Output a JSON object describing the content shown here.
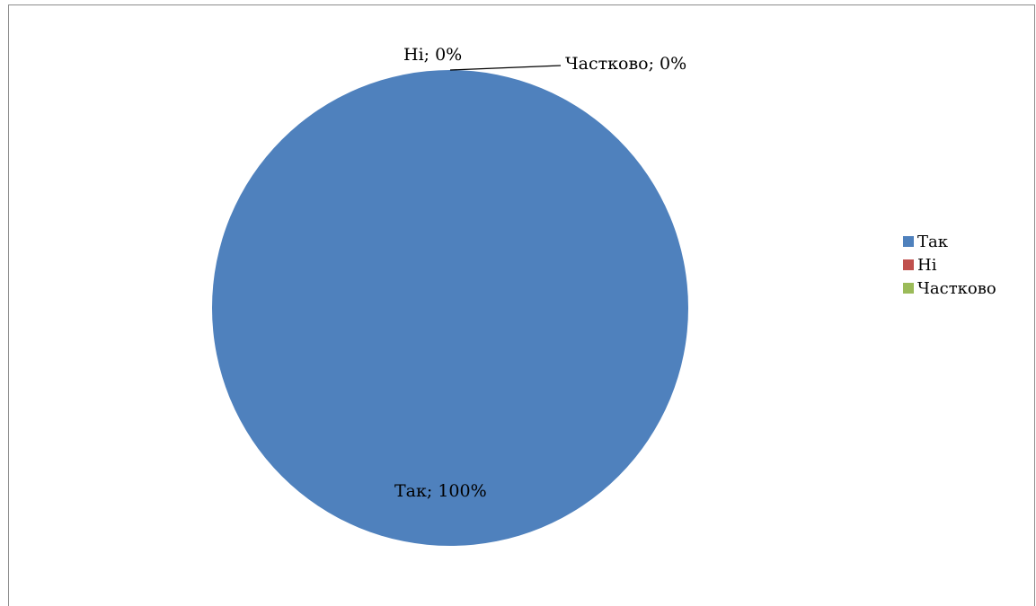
{
  "chart_data": {
    "type": "pie",
    "title": "",
    "series": [
      {
        "values": [
          100,
          0,
          0
        ]
      }
    ],
    "categories": [
      "Так",
      "Ні",
      "Частково"
    ],
    "values": [
      100,
      0,
      0
    ],
    "colors": [
      "#4f81bd",
      "#c0504d",
      "#9bbb59"
    ],
    "data_labels": [
      "Так; 100%",
      "Ні; 0%",
      "Частково; 0%"
    ],
    "legend": {
      "position": "right",
      "entries": [
        "Так",
        "Ні",
        "Частково"
      ]
    }
  }
}
